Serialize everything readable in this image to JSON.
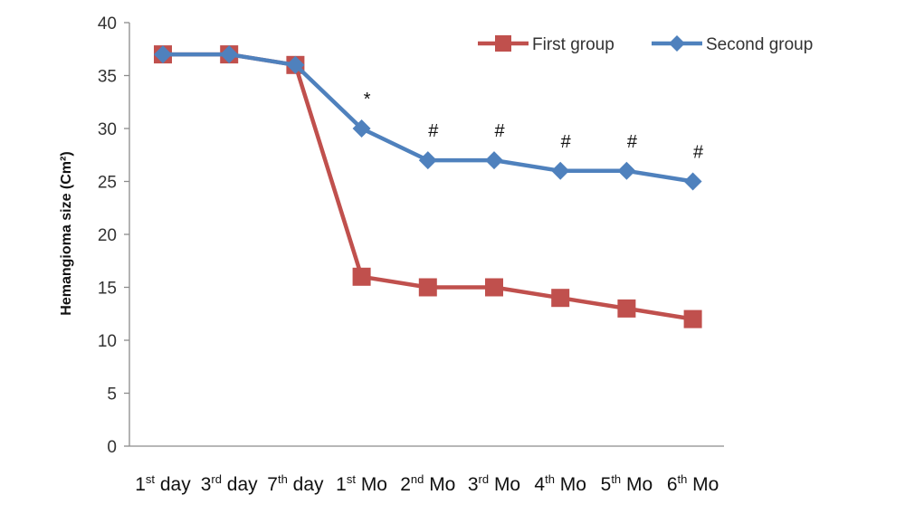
{
  "chart_data": {
    "type": "line",
    "title": "",
    "xlabel": "",
    "ylabel": "Hemangioma size (Cm²)",
    "ylim": [
      0,
      40
    ],
    "yticks": [
      0,
      5,
      10,
      15,
      20,
      25,
      30,
      35,
      40
    ],
    "grid": false,
    "legend_position": "top-right",
    "categories": [
      {
        "base": "1",
        "sup": "st",
        "rest": " day"
      },
      {
        "base": "3",
        "sup": "rd",
        "rest": " day"
      },
      {
        "base": "7",
        "sup": "th",
        "rest": " day"
      },
      {
        "base": "1",
        "sup": "st",
        "rest": " Mo"
      },
      {
        "base": "2",
        "sup": "nd",
        "rest": " Mo"
      },
      {
        "base": "3",
        "sup": "rd",
        "rest": " Mo"
      },
      {
        "base": "4",
        "sup": "th",
        "rest": " Mo"
      },
      {
        "base": "5",
        "sup": "th",
        "rest": " Mo"
      },
      {
        "base": "6",
        "sup": "th",
        "rest": " Mo"
      }
    ],
    "series": [
      {
        "name": "First group",
        "color": "#C0504D",
        "marker": "square",
        "values": [
          37,
          37,
          36,
          16,
          15,
          15,
          14,
          13,
          12
        ]
      },
      {
        "name": "Second group",
        "color": "#4F81BD",
        "marker": "diamond",
        "values": [
          37,
          37,
          36,
          30,
          27,
          27,
          26,
          26,
          25
        ]
      }
    ],
    "annotations": [
      {
        "category_index": 3,
        "text": "*"
      },
      {
        "category_index": 4,
        "text": "#"
      },
      {
        "category_index": 5,
        "text": "#"
      },
      {
        "category_index": 6,
        "text": "#"
      },
      {
        "category_index": 7,
        "text": "#"
      },
      {
        "category_index": 8,
        "text": "#"
      }
    ]
  }
}
